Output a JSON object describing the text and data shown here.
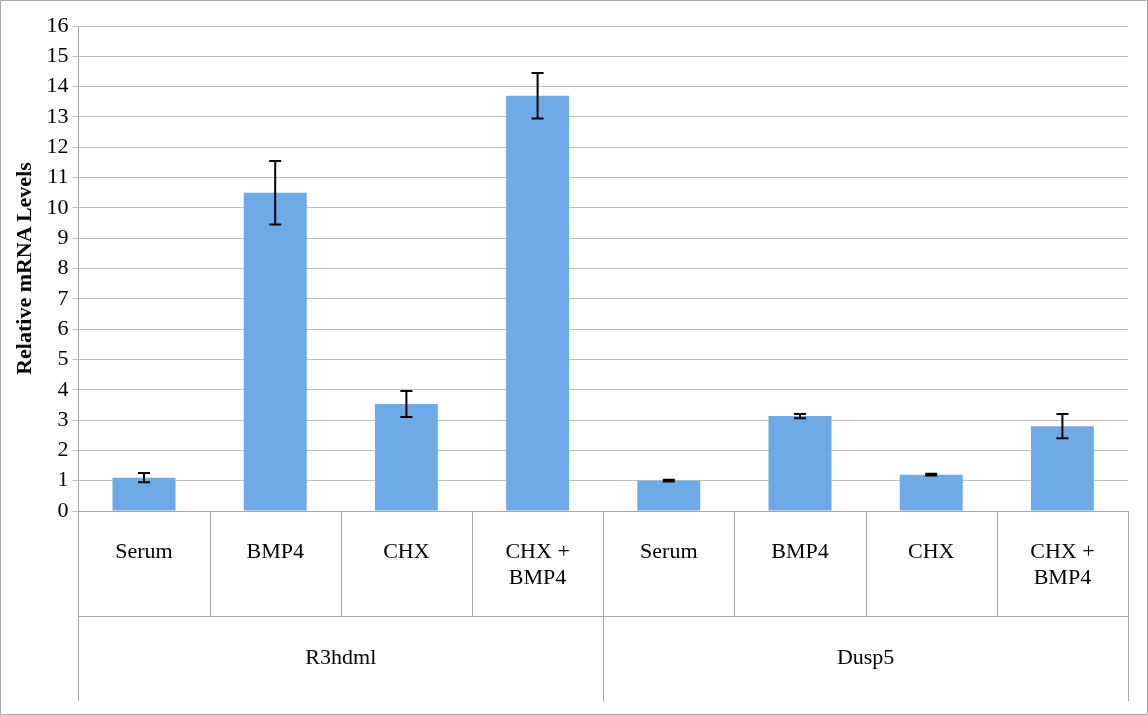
{
  "chart_data": {
    "type": "bar",
    "ylabel": "Relative mRNA Levels",
    "categories": [
      "Serum",
      "BMP4",
      "CHX",
      "CHX + BMP4",
      "Serum",
      "BMP4",
      "CHX",
      "CHX + BMP4"
    ],
    "values": [
      1.1,
      10.5,
      3.53,
      13.7,
      1.0,
      3.13,
      1.2,
      2.8
    ],
    "errors": [
      0.15,
      1.05,
      0.43,
      0.75,
      0.03,
      0.07,
      0.03,
      0.4
    ],
    "color": "#6ea9e8",
    "annotations": [
      "R3hdml",
      "Dusp5"
    ],
    "ylim": [
      0,
      16
    ],
    "yticks": [
      0,
      1,
      2,
      3,
      4,
      5,
      6,
      7,
      8,
      9,
      10,
      11,
      12,
      13,
      14,
      15,
      16
    ],
    "grid": "y",
    "legend": false
  }
}
